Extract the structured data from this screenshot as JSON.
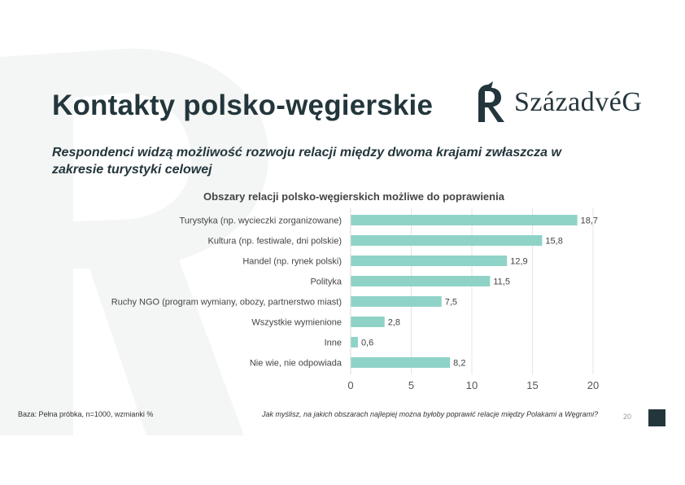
{
  "slide": {
    "title": "Kontakty polsko-węgierskie",
    "subtitle": "Respondenci widzą możliwość rozwoju relacji między dwoma krajami zwłaszcza w zakresie turystyki celowej",
    "logo_text": "SzázadvéG",
    "footer_base": "Baza: Pełna próbka, n=1000, wzmianki %",
    "footer_question": "Jak myślisz, na jakich obszarach najlepiej można byłoby poprawić relacje między Polakami a Węgrami?",
    "page_number": "20",
    "colors": {
      "bar": "#8fd3c7",
      "title": "#23363c",
      "background_shape": "#f4f5f5",
      "corner_square": "#23363c"
    }
  },
  "chart_data": {
    "type": "bar",
    "orientation": "horizontal",
    "title": "Obszary relacji polsko-węgierskich możliwe do poprawienia",
    "categories": [
      "Turystyka (np. wycieczki zorganizowane)",
      "Kultura (np. festiwale, dni polskie)",
      "Handel (np. rynek polski)",
      "Polityka",
      "Ruchy NGO (program wymiany, obozy, partnerstwo miast)",
      "Wszystkie wymienione",
      "Inne",
      "Nie wie, nie odpowiada"
    ],
    "values": [
      18.7,
      15.8,
      12.9,
      11.5,
      7.5,
      2.8,
      0.6,
      8.2
    ],
    "value_labels": [
      "18,7",
      "15,8",
      "12,9",
      "11,5",
      "7,5",
      "2,8",
      "0,6",
      "8,2"
    ],
    "xlim": [
      0,
      20
    ],
    "xticks": [
      0,
      5,
      10,
      15,
      20
    ],
    "xtick_labels": [
      "0",
      "5",
      "10",
      "15",
      "20"
    ],
    "grid": true,
    "legend": "none"
  }
}
